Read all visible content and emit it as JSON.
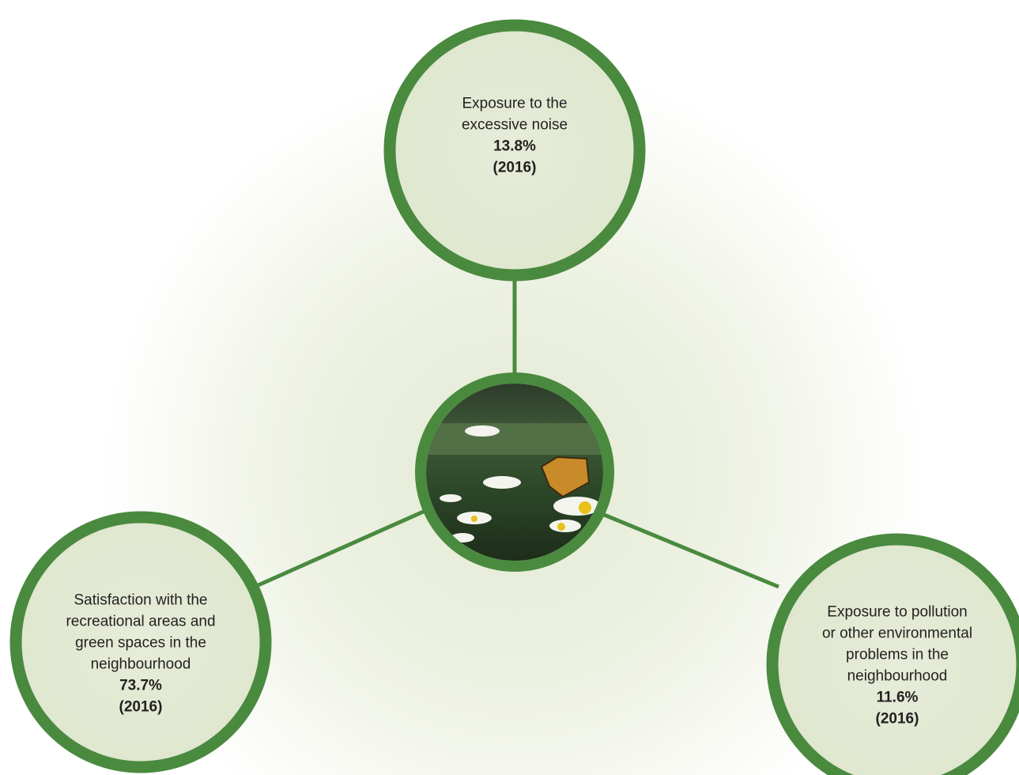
{
  "nodes": [
    {
      "lines": [
        "Exposure to the",
        "excessive noise"
      ],
      "value": "13.8%",
      "year": "(2016)"
    },
    {
      "lines": [
        "Satisfaction with the",
        "recreational areas and",
        "green spaces in the",
        "neighbourhood"
      ],
      "value": "73.7%",
      "year": "(2016)"
    },
    {
      "lines": [
        "Exposure to pollution",
        "or other environmental",
        "problems in the",
        "neighbourhood"
      ],
      "value": "11.6%",
      "year": "(2016)"
    }
  ]
}
